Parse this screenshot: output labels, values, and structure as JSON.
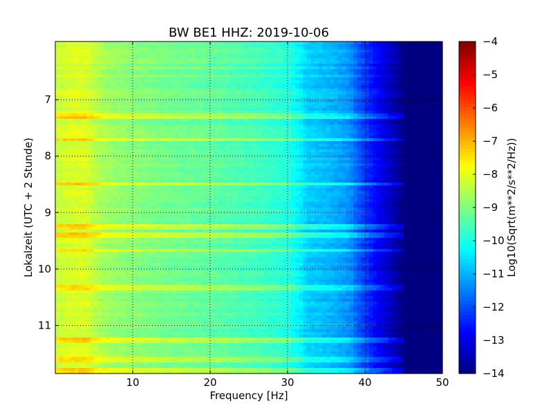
{
  "chart_data": {
    "type": "heatmap",
    "title": "BW BE1 HHZ: 2019-10-06",
    "xlabel": "Frequency [Hz]",
    "ylabel": "Lokalzeit (UTC + 2 Stunde)",
    "xlim": [
      0,
      50
    ],
    "ylim": [
      5.97,
      11.85
    ],
    "y_inverted": true,
    "x_ticks": [
      10,
      20,
      30,
      40,
      50
    ],
    "y_ticks": [
      7,
      8,
      9,
      10,
      11
    ],
    "grid": "dotted",
    "colormap": "jet",
    "colorbar": {
      "label": "Log10(Sqrt(m**2/s**2/Hz))",
      "range": [
        -14,
        -4
      ],
      "ticks": [
        -4,
        -5,
        -6,
        -7,
        -8,
        -9,
        -10,
        -11,
        -12,
        -13,
        -14
      ]
    },
    "spectrum_profile": {
      "frequency_hz": [
        0,
        2,
        4,
        6,
        8,
        10,
        14,
        20,
        26,
        30,
        31.5,
        32.5,
        36,
        38,
        39,
        40,
        42,
        44,
        45,
        46,
        50
      ],
      "log_amplitude": [
        -8.3,
        -8.1,
        -8.1,
        -8.6,
        -8.8,
        -8.9,
        -9.1,
        -9.3,
        -9.6,
        -9.9,
        -10.3,
        -10.7,
        -11.0,
        -11.3,
        -11.8,
        -12.2,
        -12.9,
        -13.6,
        -14.0,
        -14.0,
        -14.0
      ]
    },
    "noisy_hours_local": [
      7.3,
      7.7,
      8.5,
      9.25,
      9.4,
      9.68,
      10.3,
      10.35,
      11.27,
      11.6,
      11.8
    ]
  }
}
